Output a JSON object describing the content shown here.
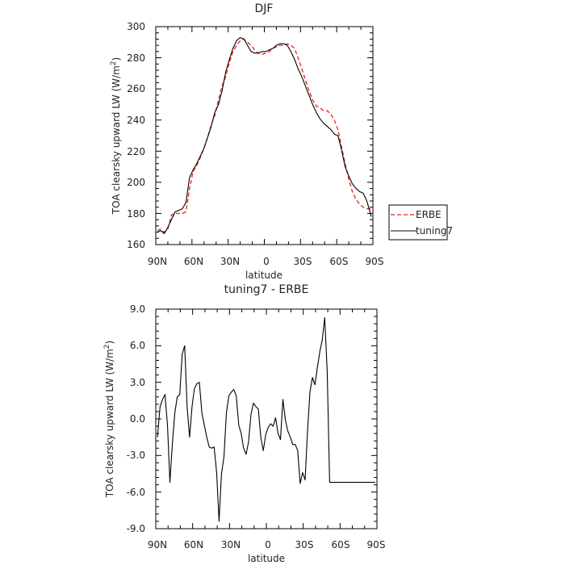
{
  "chart_data": [
    {
      "type": "line",
      "title": "DJF",
      "xlabel": "latitude",
      "ylabel": "TOA clearsky upward LW (W/m",
      "ylabel_sup": "2",
      "ylabel_end": ")",
      "x_tick_labels": [
        "90N",
        "60N",
        "30N",
        "0",
        "30S",
        "60S",
        "90S"
      ],
      "y_ticks": [
        "160",
        "180",
        "200",
        "220",
        "240",
        "260",
        "280",
        "300"
      ],
      "xlim": [
        90,
        -90
      ],
      "ylim": [
        160,
        300
      ],
      "legend_position": "right",
      "series": [
        {
          "name": "ERBE",
          "color": "#e8211f",
          "style": "dashed",
          "x": [
            88.6,
            86,
            83,
            80,
            77,
            74,
            71,
            68,
            65,
            62,
            59,
            56,
            53,
            50,
            47,
            44,
            41,
            38,
            35,
            32,
            29,
            26,
            23,
            20,
            17,
            14,
            11,
            8,
            5,
            2,
            -1,
            -4,
            -7,
            -10,
            -13,
            -16,
            -19,
            -22,
            -25,
            -28,
            -31,
            -34,
            -37,
            -40,
            -43,
            -46,
            -49,
            -52,
            -55,
            -58,
            -61,
            -64,
            -67,
            -70,
            -73,
            -76,
            -79,
            -82,
            -85,
            -88.6
          ],
          "y": [
            169,
            170,
            168,
            170,
            179,
            180,
            180,
            180,
            181,
            196,
            207,
            211,
            216,
            222,
            229,
            237,
            243,
            253,
            262,
            268,
            277,
            284,
            288,
            291,
            292,
            290,
            288,
            285,
            283,
            282,
            283,
            284,
            286,
            287,
            288,
            288,
            289,
            288,
            286,
            280,
            273,
            266,
            259,
            253,
            249,
            248,
            246,
            246,
            244,
            240,
            234,
            223,
            212,
            202,
            194,
            189,
            186,
            184,
            183,
            183
          ]
        },
        {
          "name": "tuning7",
          "color": "#000000",
          "style": "solid",
          "x": [
            88.6,
            86,
            83,
            80,
            77,
            74,
            71,
            68,
            65,
            62,
            59,
            56,
            53,
            50,
            47,
            44,
            41,
            38,
            35,
            32,
            29,
            26,
            23,
            20,
            17,
            14,
            11,
            8,
            5,
            2,
            -1,
            -4,
            -7,
            -10,
            -13,
            -16,
            -19,
            -22,
            -25,
            -28,
            -31,
            -34,
            -37,
            -40,
            -43,
            -46,
            -49,
            -52,
            -55,
            -58,
            -61,
            -64,
            -67,
            -70,
            -73,
            -76,
            -79,
            -82,
            -85,
            -88.6
          ],
          "y": [
            168,
            169,
            167,
            171,
            176,
            181,
            182,
            183,
            187,
            203,
            208,
            212,
            217,
            222,
            229,
            236,
            245,
            250,
            259,
            271,
            279,
            286,
            291,
            293,
            292,
            288,
            284,
            283,
            283,
            284,
            284,
            285,
            286,
            288,
            289,
            289,
            288,
            284,
            279,
            273,
            268,
            262,
            256,
            250,
            245,
            241,
            238,
            236,
            234,
            231,
            230,
            221,
            210,
            204,
            199,
            196,
            194,
            193,
            188,
            178
          ]
        }
      ]
    },
    {
      "type": "line",
      "title": "tuning7 - ERBE",
      "xlabel": "latitude",
      "ylabel": "TOA clearsky upward LW (W/m",
      "ylabel_sup": "2",
      "ylabel_end": ")",
      "x_tick_labels": [
        "90N",
        "60N",
        "30N",
        "0",
        "30S",
        "60S",
        "90S"
      ],
      "y_ticks": [
        "-9.0",
        "-6.0",
        "-3.0",
        "0.0",
        "3.0",
        "6.0",
        "9.0"
      ],
      "xlim": [
        90,
        -90
      ],
      "ylim": [
        -9,
        9
      ],
      "series": [
        {
          "name": "",
          "color": "#000000",
          "style": "solid",
          "x": [
            88.6,
            86.5,
            84.5,
            82.5,
            80.5,
            78.5,
            76.5,
            74.5,
            72.5,
            70.5,
            68.5,
            66.5,
            64.5,
            62.5,
            60.5,
            58.5,
            56.5,
            54.5,
            52.5,
            50.5,
            48.5,
            46.5,
            44.5,
            42.5,
            40.5,
            38.5,
            36.5,
            34.5,
            32.5,
            30.5,
            28.5,
            26.5,
            24.5,
            22.5,
            20.5,
            18.5,
            16.5,
            14.5,
            12.5,
            10.5,
            8.5,
            6.5,
            4.5,
            2.5,
            0.5,
            -1.5,
            -3.5,
            -5.5,
            -7.5,
            -9.5,
            -11.5,
            -13.5,
            -15.5,
            -17.5,
            -19.5,
            -21.5,
            -23.5,
            -25.5,
            -27.5,
            -29.5,
            -31.5,
            -33.5,
            -35.5,
            -37.5,
            -39.5,
            -41.5,
            -43.5,
            -45.5,
            -47.5,
            -49.5,
            -51.5,
            -53.5,
            -55.5,
            -57.5,
            -59.5,
            -61.5,
            -63.5,
            -65.5,
            -67.5,
            -69.5,
            -71.5,
            -73.5,
            -75.5,
            -77.5,
            -79.5,
            -81.5,
            -83.5,
            -85.5,
            -87.5,
            -88.6
          ],
          "y": [
            -1.5,
            1.0,
            1.6,
            2.0,
            -0.5,
            -5.2,
            -2.0,
            0.5,
            1.8,
            2.0,
            5.3,
            6.0,
            1.0,
            -1.5,
            1.0,
            2.5,
            2.9,
            3.0,
            0.5,
            -0.5,
            -1.5,
            -2.3,
            -2.4,
            -2.3,
            -4.4,
            -8.4,
            -4.5,
            -3.1,
            0.5,
            1.9,
            2.2,
            2.4,
            1.9,
            -0.5,
            -1.2,
            -2.4,
            -2.9,
            -1.9,
            0.4,
            1.3,
            1.0,
            0.8,
            -1.5,
            -2.6,
            -1.3,
            -0.7,
            -0.4,
            -0.6,
            0.1,
            -1.2,
            -1.7,
            1.6,
            -0.1,
            -1.0,
            -1.5,
            -2.1,
            -2.1,
            -2.6,
            -5.3,
            -4.4,
            -5.0,
            -1.0,
            2.2,
            3.4,
            2.8,
            4.2,
            5.5,
            6.5,
            8.3,
            3.9,
            -5.2,
            -5.2,
            -5.2,
            -5.2,
            -5.2,
            -5.2,
            -5.2,
            -5.2,
            -5.2,
            -5.2,
            -5.2,
            -5.2,
            -5.2,
            -5.2,
            -5.2,
            -5.2,
            -5.2,
            -5.2,
            -5.2,
            -5.2
          ]
        }
      ]
    }
  ]
}
